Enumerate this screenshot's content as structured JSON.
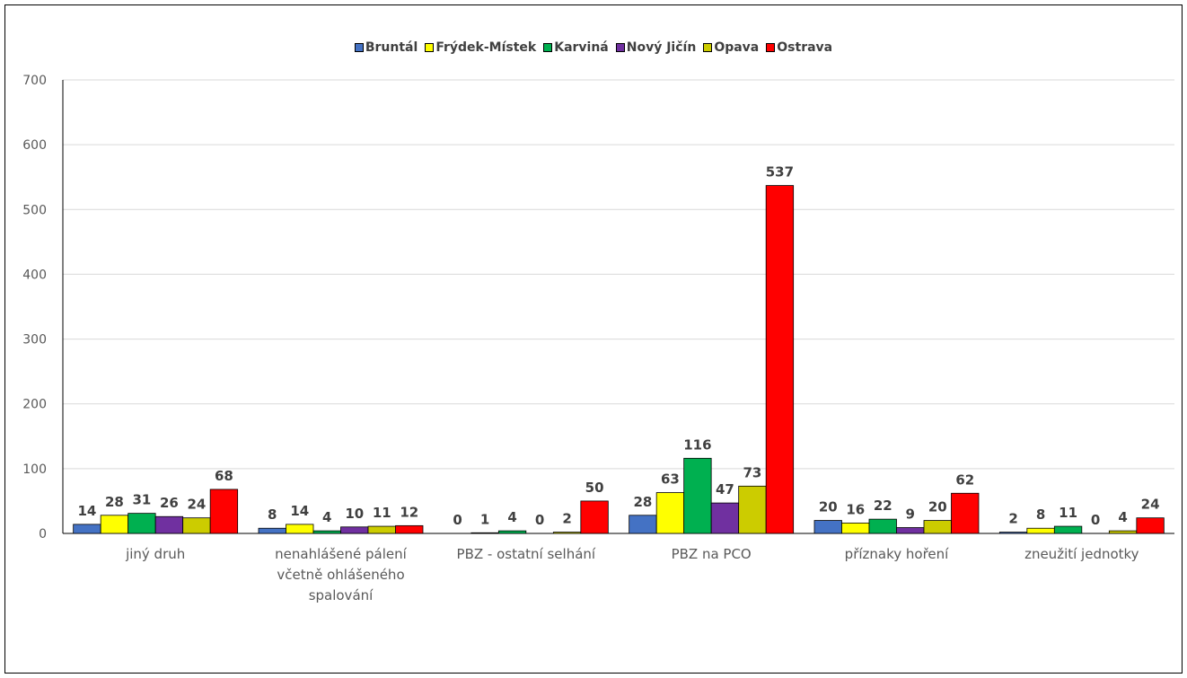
{
  "chart_data": {
    "type": "bar",
    "title": "",
    "xlabel": "",
    "ylabel": "",
    "ylim": [
      0,
      700
    ],
    "yticks": [
      0,
      100,
      200,
      300,
      400,
      500,
      600,
      700
    ],
    "grid": true,
    "legend_position": "top",
    "categories": [
      [
        "jiný druh"
      ],
      [
        "nenahlášené pálení",
        "včetně ohlášeného",
        "spalování"
      ],
      [
        "PBZ - ostatní selhání"
      ],
      [
        "PBZ na PCO"
      ],
      [
        "příznaky hoření"
      ],
      [
        "zneužití jednotky"
      ]
    ],
    "series": [
      {
        "name": "Bruntál",
        "color": "#4472C4",
        "values": [
          14,
          8,
          0,
          28,
          20,
          2
        ]
      },
      {
        "name": "Frýdek-Místek",
        "color": "#FFFF00",
        "values": [
          28,
          14,
          1,
          63,
          16,
          8
        ]
      },
      {
        "name": "Karviná",
        "color": "#00B050",
        "values": [
          31,
          4,
          4,
          116,
          22,
          11
        ]
      },
      {
        "name": "Nový Jičín",
        "color": "#7030A0",
        "values": [
          26,
          10,
          0,
          47,
          9,
          0
        ]
      },
      {
        "name": "Opava",
        "color": "#CCCC00",
        "values": [
          24,
          11,
          2,
          73,
          20,
          4
        ]
      },
      {
        "name": "Ostrava",
        "color": "#FF0000",
        "values": [
          68,
          12,
          50,
          537,
          62,
          24
        ]
      }
    ]
  }
}
